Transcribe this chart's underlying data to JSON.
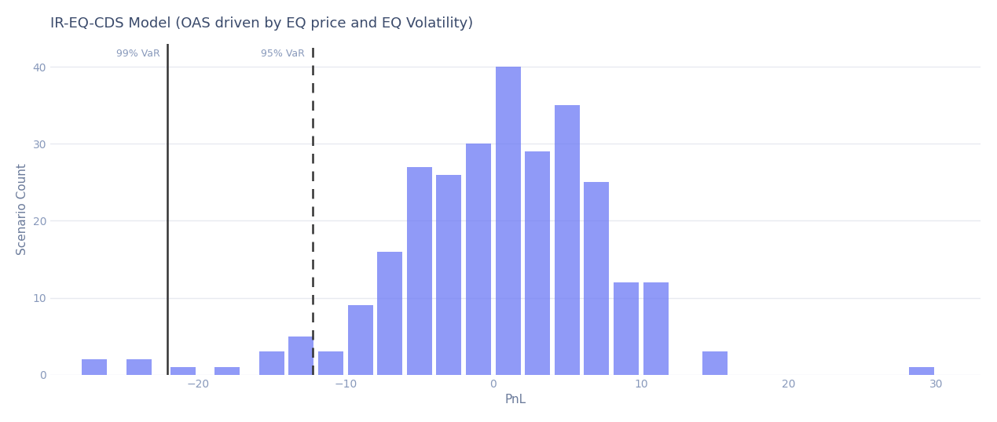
{
  "title": "IR-EQ-CDS Model (OAS driven by EQ price and EQ Volatility)",
  "xlabel": "PnL",
  "ylabel": "Scenario Count",
  "bar_color": "#6674f5",
  "background_color": "#ffffff",
  "var99_x": -22.05,
  "var95_x": -12.24,
  "var99_label": "99% VaR",
  "var95_label": "95% VaR",
  "xlim": [
    -30,
    33
  ],
  "ylim": [
    0,
    43
  ],
  "yticks": [
    0,
    10,
    20,
    30,
    40
  ],
  "xticks": [
    -20,
    -10,
    0,
    10,
    20,
    30
  ],
  "title_color": "#3a4a6b",
  "axis_label_color": "#6a7a9a",
  "tick_label_color": "#8899bb",
  "grid_color": "#e8eaf0",
  "var99_line_color": "#333333",
  "var95_line_color": "#333333",
  "bar_centers": [
    -27,
    -24,
    -21,
    -18,
    -15,
    -13,
    -11,
    -9,
    -7,
    -5,
    -3,
    -1,
    1,
    3,
    5,
    7,
    9,
    11,
    15,
    29
  ],
  "bar_heights": [
    2,
    2,
    1,
    1,
    3,
    5,
    3,
    9,
    16,
    27,
    26,
    30,
    40,
    29,
    35,
    25,
    12,
    12,
    3,
    1
  ],
  "bar_width": 1.7
}
